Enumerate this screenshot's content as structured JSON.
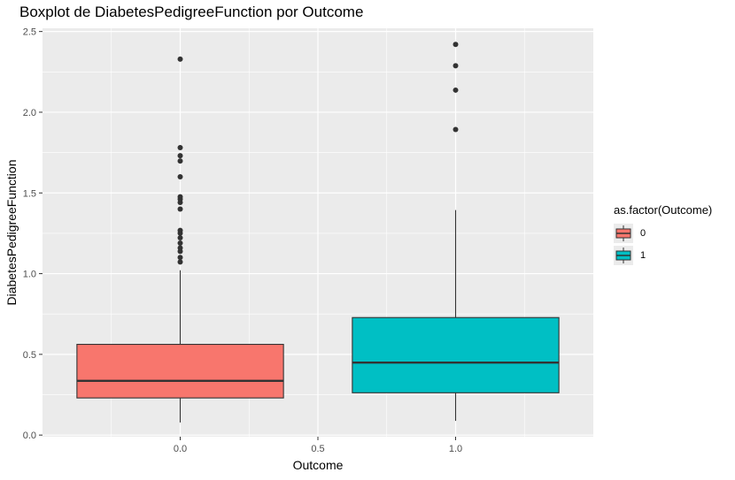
{
  "chart_data": {
    "type": "boxplot",
    "title": "Boxplot de DiabetesPedigreeFunction por Outcome",
    "xlabel": "Outcome",
    "ylabel": "DiabetesPedigreeFunction",
    "xlim": [
      -0.5,
      1.5
    ],
    "ylim": [
      -0.01,
      2.52
    ],
    "x_ticks": [
      0.0,
      0.5,
      1.0
    ],
    "x_tick_labels": [
      "0.0",
      "0.5",
      "1.0"
    ],
    "y_ticks": [
      0.0,
      0.5,
      1.0,
      1.5,
      2.0,
      2.5
    ],
    "y_tick_labels": [
      "0.0",
      "0.5",
      "1.0",
      "1.5",
      "2.0",
      "2.5"
    ],
    "grid": true,
    "legend": {
      "title": "as.factor(Outcome)",
      "placement": "right",
      "entries": [
        {
          "label": "0",
          "color": "#F8766D"
        },
        {
          "label": "1",
          "color": "#00BFC4"
        }
      ]
    },
    "series": [
      {
        "name": "0",
        "x": 0.0,
        "width": 0.75,
        "color": "#F8766D",
        "min": 0.078,
        "q1": 0.23,
        "median": 0.336,
        "q3": 0.562,
        "whisker_high": 1.021,
        "outliers": [
          1.072,
          1.1,
          1.138,
          1.159,
          1.189,
          1.222,
          1.251,
          1.268,
          1.4,
          1.441,
          1.461,
          1.476,
          1.6,
          1.698,
          1.731,
          1.781,
          2.329
        ]
      },
      {
        "name": "1",
        "x": 1.0,
        "width": 0.75,
        "color": "#00BFC4",
        "min": 0.088,
        "q1": 0.262,
        "median": 0.449,
        "q3": 0.728,
        "whisker_high": 1.394,
        "outliers": [
          1.893,
          2.137,
          2.288,
          2.42
        ]
      }
    ]
  }
}
